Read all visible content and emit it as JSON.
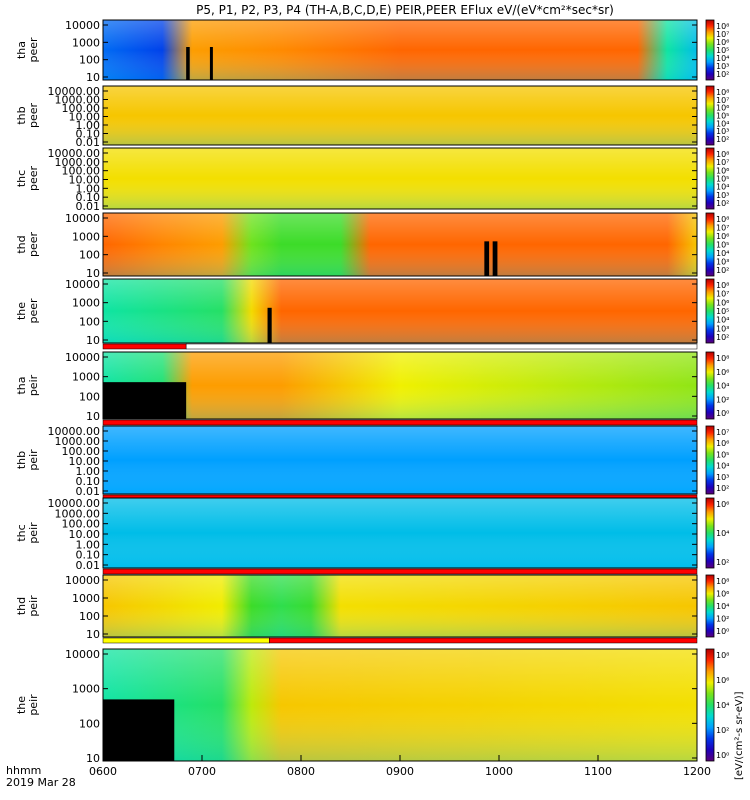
{
  "title": "P5, P1, P2, P3, P4 (TH-A,B,C,D,E) PEIR,PEER EFlux eV/(eV*cm²*sec*sr)",
  "colors": {
    "background": "#ffffff",
    "axis": "#000000",
    "gap": "#000000",
    "status_bar_red": "#ff0000",
    "status_bar_yellow": "#ffff00"
  },
  "footer": {
    "line1": "hhmm",
    "line2": "2019 Mar 28"
  },
  "colorbar_label": "[eV/(cm²-s sr-eV)]",
  "chart_data": {
    "type": "heatmap",
    "xlabel": "",
    "x_unit": "hhmm (UT)",
    "x_range": [
      "0600",
      "1200"
    ],
    "x_ticks": [
      "0600",
      "0700",
      "0800",
      "0900",
      "1000",
      "1100",
      "1200"
    ],
    "y_scale": "log",
    "color_scale": "log rainbow (purple-blue-cyan-green-yellow-red)",
    "panels": [
      {
        "name": "tha peer",
        "label_probe": "tha",
        "label_type": "peer",
        "yticks": [
          "10",
          "100",
          "1000",
          "10000"
        ],
        "cbar_ticks": [
          "10⁸",
          "10⁷",
          "10⁶",
          "10⁵",
          "10⁴",
          "10³",
          "10²"
        ],
        "profile": [
          [
            0.0,
            0.25
          ],
          [
            0.13,
            0.2
          ],
          [
            0.14,
            0.6
          ],
          [
            0.15,
            0.8
          ],
          [
            0.5,
            0.85
          ],
          [
            0.9,
            0.85
          ],
          [
            0.95,
            0.45
          ],
          [
            1.0,
            0.35
          ]
        ],
        "gaps": [
          [
            0.14,
            0.146
          ],
          [
            0.18,
            0.185
          ]
        ],
        "status_bar": []
      },
      {
        "name": "thb peer",
        "label_probe": "thb",
        "label_type": "peer",
        "yticks": [
          "0.01",
          "0.10",
          "1.00",
          "10.00",
          "100.00",
          "1000.00",
          "10000.00"
        ],
        "cbar_ticks": [
          "10⁸",
          "10⁷",
          "10⁶",
          "10⁵",
          "10⁴",
          "10³",
          "10²"
        ],
        "profile": [
          [
            0.0,
            0.75
          ],
          [
            1.0,
            0.75
          ]
        ],
        "gaps": [],
        "status_bar": []
      },
      {
        "name": "thc peer",
        "label_probe": "thc",
        "label_type": "peer",
        "yticks": [
          "0.01",
          "0.10",
          "1.00",
          "10.00",
          "100.00",
          "1000.00",
          "10000.00"
        ],
        "cbar_ticks": [
          "10⁸",
          "10⁷",
          "10⁶",
          "10⁵",
          "10⁴",
          "10³",
          "10²"
        ],
        "profile": [
          [
            0.0,
            0.72
          ],
          [
            1.0,
            0.72
          ]
        ],
        "gaps": [],
        "status_bar": []
      },
      {
        "name": "thd peer",
        "label_probe": "thd",
        "label_type": "peer",
        "yticks": [
          "10",
          "100",
          "1000",
          "10000"
        ],
        "cbar_ticks": [
          "10⁸",
          "10⁷",
          "10⁶",
          "10⁵",
          "10⁴",
          "10³",
          "10²"
        ],
        "profile": [
          [
            0.0,
            0.85
          ],
          [
            0.2,
            0.8
          ],
          [
            0.26,
            0.55
          ],
          [
            0.42,
            0.55
          ],
          [
            0.45,
            0.85
          ],
          [
            0.95,
            0.85
          ],
          [
            1.0,
            0.75
          ]
        ],
        "gaps": [
          [
            0.642,
            0.65
          ],
          [
            0.656,
            0.664
          ]
        ],
        "status_bar": []
      },
      {
        "name": "the peer",
        "label_probe": "the",
        "label_type": "peer",
        "yticks": [
          "10",
          "100",
          "1000",
          "10000"
        ],
        "cbar_ticks": [
          "10⁸",
          "10⁷",
          "10⁶",
          "10⁵",
          "10⁴",
          "10³",
          "10²"
        ],
        "profile": [
          [
            0.0,
            0.45
          ],
          [
            0.2,
            0.5
          ],
          [
            0.24,
            0.7
          ],
          [
            0.3,
            0.85
          ],
          [
            1.0,
            0.85
          ]
        ],
        "gaps": [
          [
            0.277,
            0.284
          ]
        ],
        "status_bar": [
          [
            "red",
            0.0,
            0.14
          ],
          [
            "white",
            0.14,
            1.0
          ]
        ]
      },
      {
        "name": "tha peir",
        "label_probe": "tha",
        "label_type": "peir",
        "yticks": [
          "10",
          "100",
          "1000",
          "10000"
        ],
        "cbar_ticks": [
          "10⁸",
          "10⁶",
          "10⁴",
          "10²",
          "10⁰"
        ],
        "profile": [
          [
            0.0,
            0.45
          ],
          [
            0.13,
            0.5
          ],
          [
            0.14,
            0.8
          ],
          [
            0.3,
            0.8
          ],
          [
            0.5,
            0.7
          ],
          [
            1.0,
            0.62
          ]
        ],
        "gaps": [
          [
            0.0,
            0.14
          ]
        ],
        "status_bar": [
          [
            "red",
            0.0,
            1.0
          ]
        ]
      },
      {
        "name": "thb peir",
        "label_probe": "thb",
        "label_type": "peir",
        "yticks": [
          "0.01",
          "0.10",
          "1.00",
          "10.00",
          "100.00",
          "1000.00",
          "10000.00"
        ],
        "cbar_ticks": [
          "10⁷",
          "10⁶",
          "10⁵",
          "10⁴",
          "10³",
          "10²"
        ],
        "profile": [
          [
            0.0,
            0.3
          ],
          [
            1.0,
            0.3
          ]
        ],
        "gaps": [],
        "status_bar": [
          [
            "red",
            0.0,
            1.0
          ]
        ]
      },
      {
        "name": "thc peir",
        "label_probe": "thc",
        "label_type": "peir",
        "yticks": [
          "0.01",
          "0.10",
          "1.00",
          "10.00",
          "100.00",
          "1000.00",
          "10000.00"
        ],
        "cbar_ticks": [
          "10⁶",
          "10⁴",
          "10²"
        ],
        "profile": [
          [
            0.0,
            0.35
          ],
          [
            1.0,
            0.35
          ]
        ],
        "gaps": [],
        "status_bar": [
          [
            "red",
            0.0,
            1.0
          ]
        ]
      },
      {
        "name": "thd peir",
        "label_probe": "thd",
        "label_type": "peir",
        "yticks": [
          "10",
          "100",
          "1000",
          "10000"
        ],
        "cbar_ticks": [
          "10⁸",
          "10⁶",
          "10⁴",
          "10²",
          "10⁰"
        ],
        "profile": [
          [
            0.0,
            0.75
          ],
          [
            0.22,
            0.7
          ],
          [
            0.26,
            0.5
          ],
          [
            0.36,
            0.55
          ],
          [
            0.4,
            0.72
          ],
          [
            1.0,
            0.75
          ]
        ],
        "gaps": [],
        "status_bar": [
          [
            "yellow",
            0.0,
            0.28
          ],
          [
            "red",
            0.28,
            1.0
          ]
        ]
      },
      {
        "name": "the peir",
        "label_probe": "the",
        "label_type": "peir",
        "yticks": [
          "10",
          "100",
          "1000",
          "10000"
        ],
        "cbar_ticks": [
          "10⁸",
          "10⁶",
          "10⁴",
          "10²",
          "10⁰"
        ],
        "profile": [
          [
            0.0,
            0.45
          ],
          [
            0.2,
            0.5
          ],
          [
            0.28,
            0.75
          ],
          [
            1.0,
            0.72
          ]
        ],
        "gaps": [
          [
            0.0,
            0.12
          ]
        ],
        "status_bar": []
      }
    ]
  }
}
